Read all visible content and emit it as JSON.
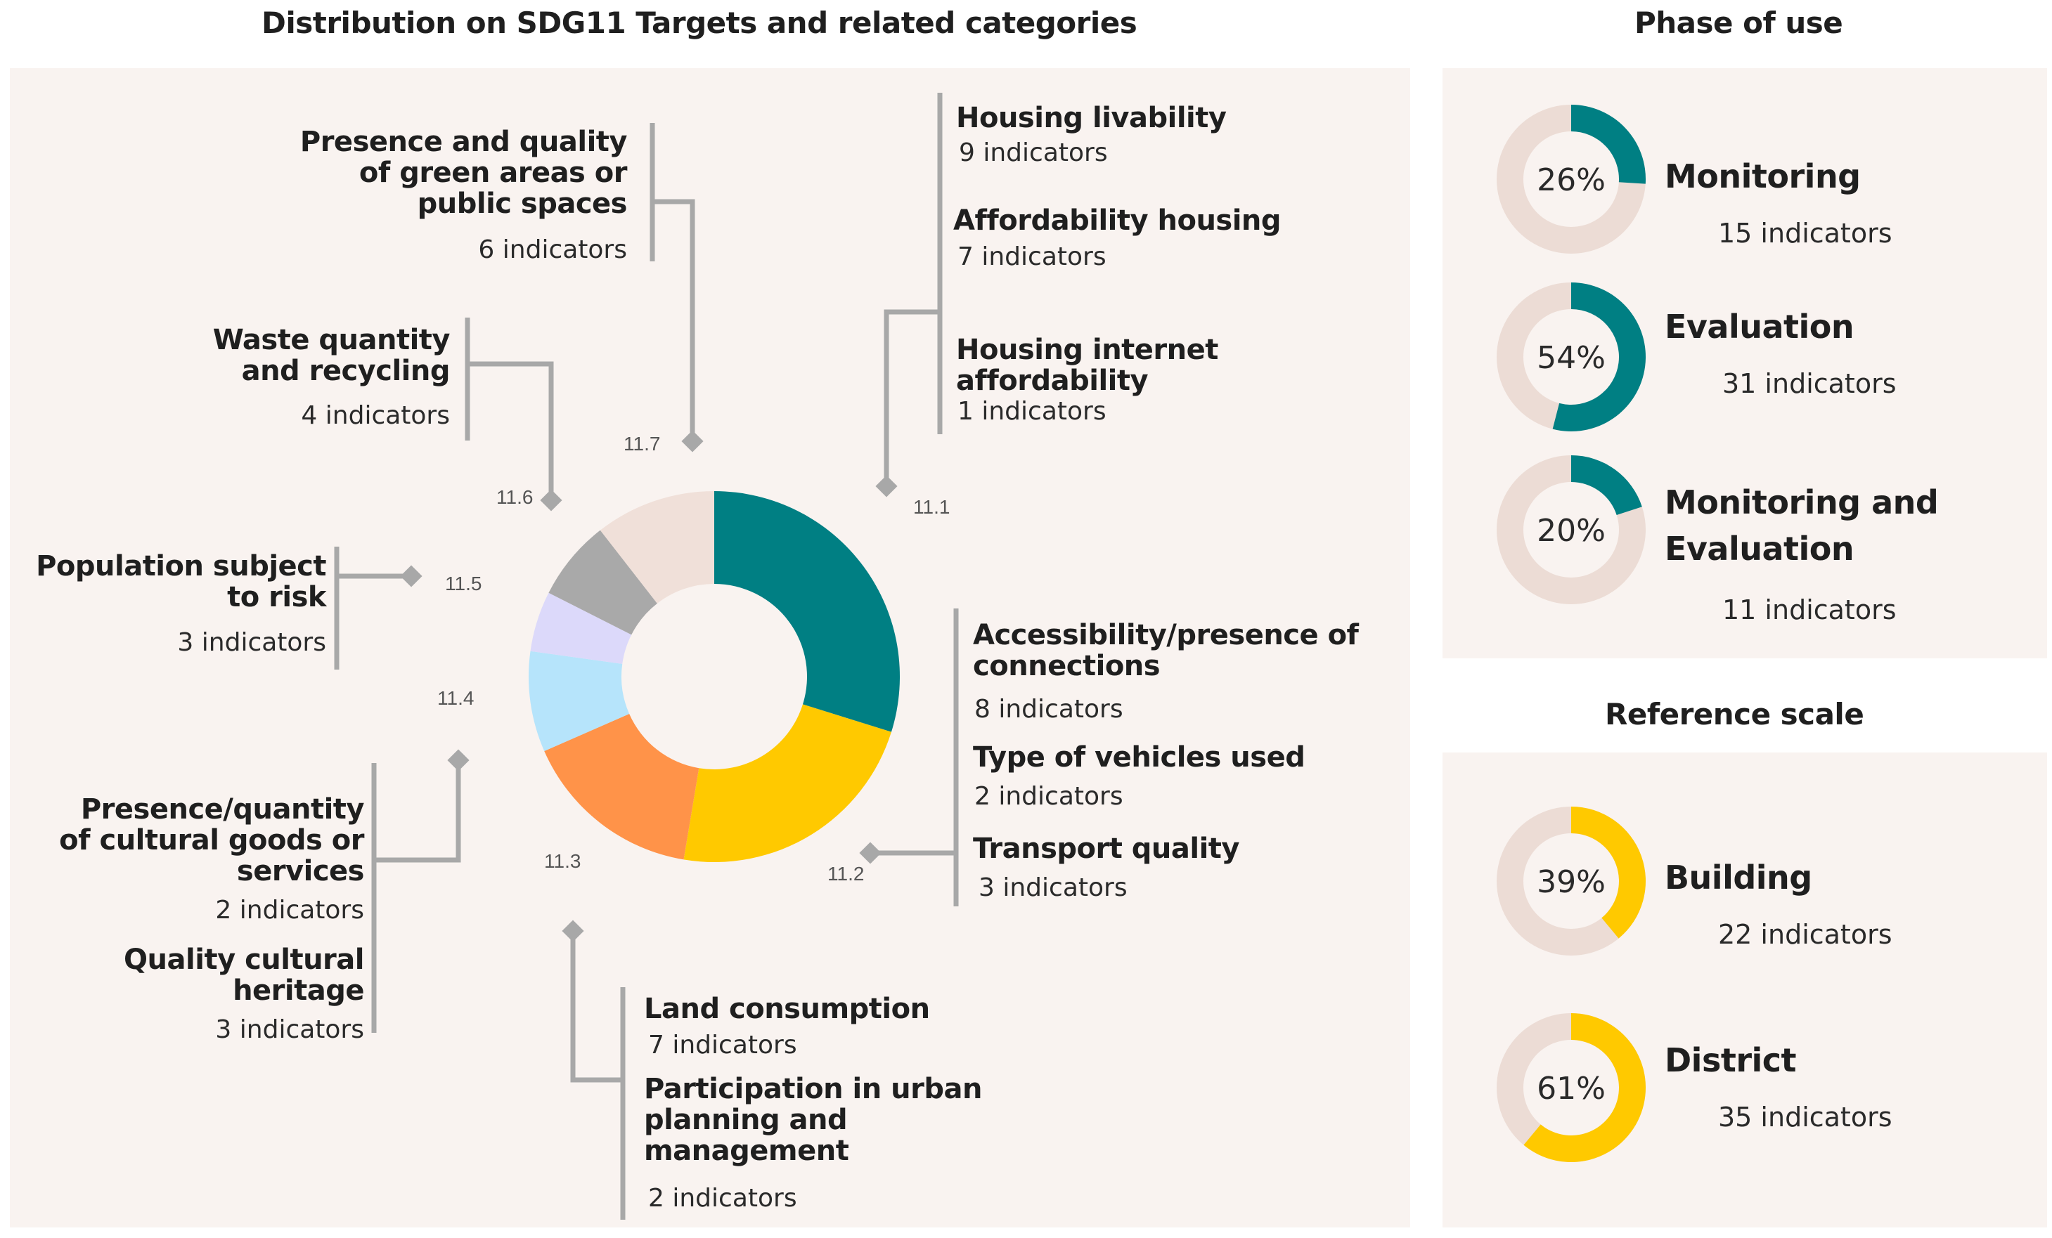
{
  "chart_data": [
    {
      "type": "pie",
      "title": "Distribution on SDG11 Targets and related categories",
      "donut": true,
      "slices": [
        {
          "target": "11.1",
          "value": 17,
          "color": "#007f83"
        },
        {
          "target": "11.2",
          "value": 13,
          "color": "#ffc900"
        },
        {
          "target": "11.3",
          "value": 9,
          "color": "#ff9349"
        },
        {
          "target": "11.4",
          "value": 5,
          "color": "#b6e4fb"
        },
        {
          "target": "11.5",
          "value": 3,
          "color": "#dcd9fa"
        },
        {
          "target": "11.6",
          "value": 4,
          "color": "#a9a9a9"
        },
        {
          "target": "11.7",
          "value": 6,
          "color": "#f0e0d9"
        }
      ],
      "groups": [
        {
          "target": "11.1",
          "categories": [
            {
              "name": "Housing livability",
              "indicators": "9 indicators"
            },
            {
              "name": "Affordability housing",
              "indicators": "7 indicators"
            },
            {
              "name": "Housing internet affordability",
              "indicators": "1 indicators"
            }
          ]
        },
        {
          "target": "11.2",
          "categories": [
            {
              "name": "Accessibility/presence of connections",
              "indicators": "8 indicators"
            },
            {
              "name": "Type of vehicles used",
              "indicators": "2 indicators"
            },
            {
              "name": "Transport quality",
              "indicators": "3 indicators"
            }
          ]
        },
        {
          "target": "11.3",
          "categories": [
            {
              "name": "Land consumption",
              "indicators": "7 indicators"
            },
            {
              "name": "Participation in urban planning and management",
              "indicators": "2 indicators"
            }
          ]
        },
        {
          "target": "11.4",
          "categories": [
            {
              "name": "Presence/quantity of cultural goods or services",
              "indicators": "2 indicators"
            },
            {
              "name": "Quality cultural heritage",
              "indicators": "3 indicators"
            }
          ]
        },
        {
          "target": "11.5",
          "categories": [
            {
              "name": "Population subject to risk",
              "indicators": "3 indicators"
            }
          ]
        },
        {
          "target": "11.6",
          "categories": [
            {
              "name": "Waste quantity and recycling",
              "indicators": "4 indicators"
            }
          ]
        },
        {
          "target": "11.7",
          "categories": [
            {
              "name": "Presence and quality of green areas or public spaces",
              "indicators": "6 indicators"
            }
          ]
        }
      ]
    },
    {
      "type": "pie",
      "title": "Phase of use",
      "donut": true,
      "items": [
        {
          "name": "Monitoring",
          "percent": 26,
          "percent_label": "26%",
          "indicators": "15 indicators",
          "color": "#007f83"
        },
        {
          "name": "Evaluation",
          "percent": 54,
          "percent_label": "54%",
          "indicators": "31 indicators",
          "color": "#007f83"
        },
        {
          "name": "Monitoring and Evaluation",
          "percent": 20,
          "percent_label": "20%",
          "indicators": "11 indicators",
          "color": "#007f83"
        }
      ]
    },
    {
      "type": "pie",
      "title": "Reference scale",
      "donut": true,
      "items": [
        {
          "name": "Building",
          "percent": 39,
          "percent_label": "39%",
          "indicators": "22 indicators",
          "color": "#ffc900"
        },
        {
          "name": "District",
          "percent": 61,
          "percent_label": "61%",
          "indicators": "35 indicators",
          "color": "#ffc900"
        }
      ]
    }
  ],
  "colors": {
    "ring_background": "#ecdcd5",
    "connector": "#a8a8a8",
    "panel": "#f9f3f0"
  }
}
